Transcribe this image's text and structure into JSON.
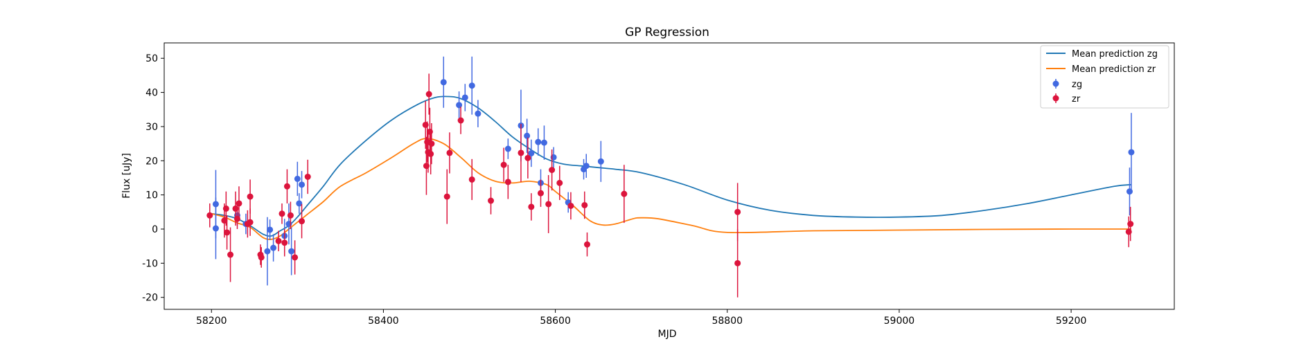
{
  "chart_data": {
    "type": "scatter",
    "title": "GP Regression",
    "xlabel": "MJD",
    "ylabel": "Flux [uJy]",
    "xlim": [
      58145,
      59320
    ],
    "ylim": [
      -23.5,
      54.5
    ],
    "xticks": [
      58200,
      58400,
      58600,
      58800,
      59000,
      59200
    ],
    "yticks": [
      -20,
      -10,
      0,
      10,
      20,
      30,
      40,
      50
    ],
    "grid": false,
    "legend_position": "top-right",
    "colors": {
      "mean_zg": "#1f77b4",
      "mean_zr": "#ff7f0e",
      "zg": "#4169e1",
      "zr": "#dc143c"
    },
    "series": [
      {
        "name": "Mean prediction zg",
        "kind": "line",
        "color": "#1f77b4",
        "x": [
          58200,
          58215,
          58230,
          58245,
          58260,
          58270,
          58280,
          58290,
          58300,
          58310,
          58330,
          58350,
          58380,
          58410,
          58440,
          58460,
          58475,
          58490,
          58510,
          58530,
          58550,
          58570,
          58590,
          58610,
          58630,
          58650,
          58670,
          58700,
          58750,
          58800,
          58850,
          58900,
          58950,
          59000,
          59050,
          59100,
          59150,
          59200,
          59250,
          59270
        ],
        "y": [
          4.5,
          4.0,
          3.0,
          1.0,
          -1.5,
          -2.0,
          -0.5,
          1.0,
          3.5,
          6.5,
          12.5,
          19,
          26,
          32,
          36.5,
          38.5,
          38.8,
          38.2,
          35.5,
          31.5,
          27,
          23.5,
          20.5,
          19,
          18.5,
          18,
          17.5,
          16.5,
          13,
          8.5,
          5.5,
          4,
          3.5,
          3.5,
          4,
          5.5,
          7.5,
          10,
          12.5,
          13
        ]
      },
      {
        "name": "Mean prediction zr",
        "kind": "line",
        "color": "#ff7f0e",
        "x": [
          58200,
          58215,
          58230,
          58245,
          58260,
          58270,
          58280,
          58290,
          58300,
          58310,
          58330,
          58350,
          58380,
          58410,
          58435,
          58450,
          58470,
          58490,
          58510,
          58530,
          58550,
          58570,
          58590,
          58600,
          58620,
          58640,
          58655,
          58670,
          58690,
          58700,
          58720,
          58760,
          58800,
          58900,
          59000,
          59100,
          59200,
          59270
        ],
        "y": [
          4.5,
          3.5,
          1.8,
          0.5,
          -2.5,
          -3,
          -2,
          0,
          2,
          4,
          8,
          12.5,
          16.5,
          21,
          25,
          26.5,
          25,
          21,
          16.5,
          14,
          13.5,
          14,
          13,
          11,
          7,
          2.5,
          1.2,
          1.5,
          3,
          3.3,
          3,
          1,
          -1,
          -0.5,
          -0.3,
          -0.1,
          0,
          0
        ]
      },
      {
        "name": "zg",
        "kind": "errorbar",
        "color": "#4169e1",
        "points": [
          [
            58205,
            7.3,
            10.0
          ],
          [
            58205,
            0.2,
            9.0
          ],
          [
            58230,
            4.0,
            3.0
          ],
          [
            58240,
            1.5,
            3.0
          ],
          [
            58265,
            -6.5,
            10.0
          ],
          [
            58268,
            -0.2,
            3.0
          ],
          [
            58272,
            -5.5,
            4.0
          ],
          [
            58285,
            -2.0,
            5.0
          ],
          [
            58290,
            1.5,
            6.0
          ],
          [
            58293,
            -6.5,
            7.0
          ],
          [
            58300,
            14.7,
            5.0
          ],
          [
            58302,
            7.5,
            3.0
          ],
          [
            58305,
            13.0,
            4.0
          ],
          [
            58470,
            43.0,
            7.5
          ],
          [
            58488,
            36.3,
            4.0
          ],
          [
            58495,
            38.5,
            4.0
          ],
          [
            58503,
            42.0,
            8.5
          ],
          [
            58510,
            33.8,
            4.0
          ],
          [
            58545,
            23.5,
            3.0
          ],
          [
            58560,
            30.3,
            10.5
          ],
          [
            58567,
            27.3,
            5.0
          ],
          [
            58572,
            22.2,
            4.0
          ],
          [
            58580,
            25.5,
            4.0
          ],
          [
            58583,
            13.5,
            4.0
          ],
          [
            58587,
            25.3,
            5.0
          ],
          [
            58598,
            21.0,
            3.0
          ],
          [
            58615,
            7.8,
            3.0
          ],
          [
            58633,
            17.5,
            3.0
          ],
          [
            58636,
            18.5,
            3.5
          ],
          [
            58653,
            19.8,
            6.0
          ],
          [
            59268,
            11.0,
            7.0
          ],
          [
            59270,
            22.5,
            11.5
          ]
        ]
      },
      {
        "name": "zr",
        "kind": "errorbar",
        "color": "#dc143c",
        "points": [
          [
            58198,
            4.0,
            3.5
          ],
          [
            58215,
            2.5,
            5.0
          ],
          [
            58217,
            6.0,
            5.0
          ],
          [
            58218,
            -1.0,
            5.0
          ],
          [
            58222,
            -7.5,
            8.0
          ],
          [
            58228,
            6.0,
            5.0
          ],
          [
            58232,
            7.5,
            5.0
          ],
          [
            58230,
            3.0,
            3.0
          ],
          [
            58242,
            1.5,
            4.0
          ],
          [
            58245,
            9.5,
            5.0
          ],
          [
            58245,
            2.0,
            4.0
          ],
          [
            58257,
            -7.5,
            3.0
          ],
          [
            58258,
            -8.3,
            3.0
          ],
          [
            58278,
            -3.5,
            3.0
          ],
          [
            58282,
            4.5,
            3.0
          ],
          [
            58285,
            -4.0,
            4.0
          ],
          [
            58288,
            12.5,
            5.0
          ],
          [
            58292,
            4.0,
            4.0
          ],
          [
            58297,
            -8.3,
            5.0
          ],
          [
            58305,
            2.3,
            5.0
          ],
          [
            58312,
            15.3,
            5.0
          ],
          [
            58449,
            30.5,
            7.0
          ],
          [
            58450,
            18.5,
            8.5
          ],
          [
            58451,
            25.5,
            6.0
          ],
          [
            58452,
            22.5,
            6.0
          ],
          [
            58453,
            39.5,
            6.0
          ],
          [
            58454,
            28.5,
            7.0
          ],
          [
            58455,
            22.0,
            6.0
          ],
          [
            58456,
            25.0,
            6.0
          ],
          [
            58474,
            9.5,
            8.0
          ],
          [
            58477,
            22.3,
            6.0
          ],
          [
            58490,
            31.8,
            4.0
          ],
          [
            58503,
            14.5,
            6.0
          ],
          [
            58525,
            8.3,
            4.0
          ],
          [
            58540,
            18.8,
            5.0
          ],
          [
            58545,
            13.8,
            5.0
          ],
          [
            58560,
            22.3,
            8.5
          ],
          [
            58568,
            20.8,
            6.0
          ],
          [
            58572,
            6.5,
            4.0
          ],
          [
            58583,
            10.5,
            4.0
          ],
          [
            58592,
            7.3,
            8.5
          ],
          [
            58596,
            17.3,
            6.0
          ],
          [
            58605,
            13.5,
            5.0
          ],
          [
            58618,
            6.8,
            4.0
          ],
          [
            58634,
            7.0,
            4.0
          ],
          [
            58637,
            -4.5,
            3.5
          ],
          [
            58680,
            10.3,
            8.5
          ],
          [
            58812,
            5.0,
            8.5
          ],
          [
            58812,
            -10.0,
            10.0
          ],
          [
            59267,
            -0.8,
            4.5
          ],
          [
            59269,
            1.5,
            5.0
          ]
        ]
      }
    ]
  }
}
